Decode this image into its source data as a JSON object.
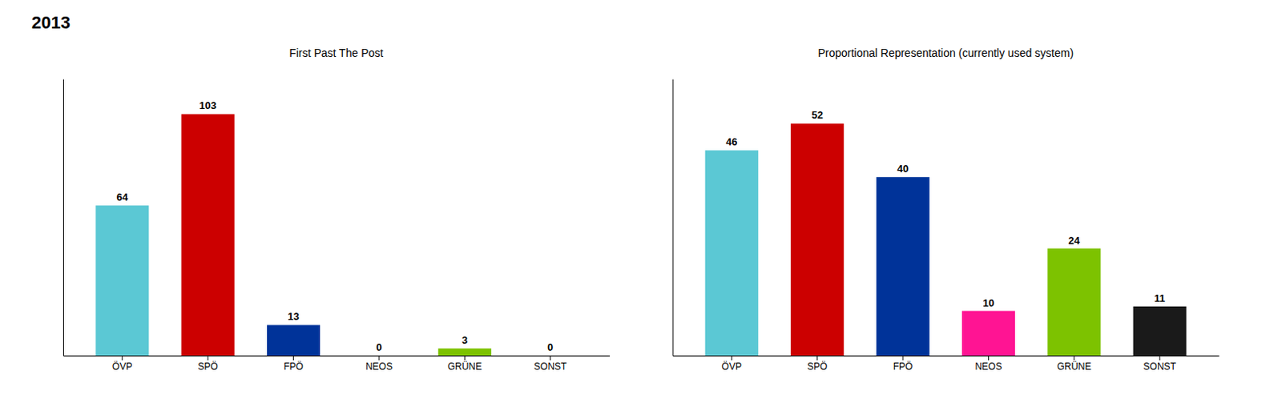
{
  "title": "2013",
  "chart_data": [
    {
      "type": "bar",
      "title": "First Past The Post",
      "categories": [
        "ÖVP",
        "SPÖ",
        "FPÖ",
        "NEOS",
        "GRÜNE",
        "SONST"
      ],
      "values": [
        64,
        103,
        13,
        0,
        3,
        0
      ],
      "colors": [
        "#5BC8D4",
        "#CC0000",
        "#003399",
        "#FF1493",
        "#7DC200",
        "#1A1A1A"
      ],
      "ylim": [
        0,
        118
      ],
      "data_labels": true,
      "tick_labels": "x"
    },
    {
      "type": "bar",
      "title": "Proportional Representation (currently used system)",
      "categories": [
        "ÖVP",
        "SPÖ",
        "FPÖ",
        "NEOS",
        "GRÜNE",
        "SONST"
      ],
      "values": [
        46,
        52,
        40,
        10,
        24,
        11
      ],
      "colors": [
        "#5BC8D4",
        "#CC0000",
        "#003399",
        "#FF1493",
        "#7DC200",
        "#1A1A1A"
      ],
      "ylim": [
        0,
        62
      ],
      "data_labels": true,
      "tick_labels": "x"
    }
  ]
}
